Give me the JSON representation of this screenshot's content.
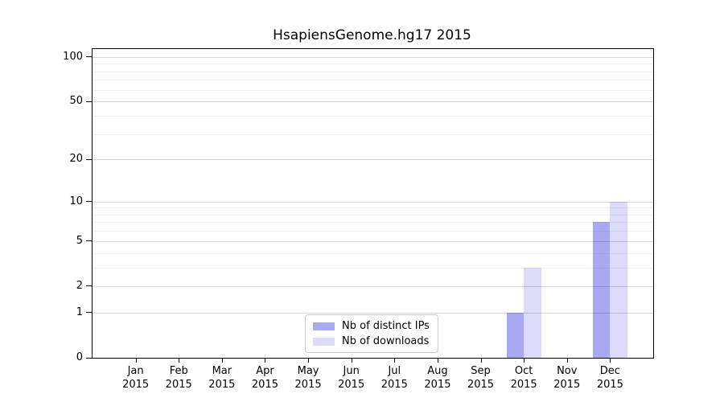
{
  "title": "HsapiensGenome.hg17 2015",
  "chart_data": {
    "type": "bar",
    "title": "HsapiensGenome.hg17 2015",
    "categories": [
      "Jan",
      "Feb",
      "Mar",
      "Apr",
      "May",
      "Jun",
      "Jul",
      "Aug",
      "Sep",
      "Oct",
      "Nov",
      "Dec"
    ],
    "category_year_label": "2015",
    "series": [
      {
        "name": "Nb of distinct IPs",
        "color": "#a8a8f3",
        "values": [
          0,
          0,
          0,
          0,
          0,
          0,
          0,
          0,
          0,
          1,
          0,
          7
        ]
      },
      {
        "name": "Nb of downloads",
        "color": "#dcdcfa",
        "values": [
          0,
          0,
          0,
          0,
          0,
          0,
          0,
          0,
          0,
          3,
          0,
          10
        ]
      }
    ],
    "xlabel": "",
    "ylabel": "",
    "yscale": "log1p",
    "ylim": [
      0,
      113
    ],
    "yticks": [
      0,
      1,
      2,
      5,
      10,
      20,
      50,
      100
    ],
    "minor_yticks": [
      3,
      4,
      6,
      7,
      8,
      9,
      30,
      40,
      60,
      70,
      80,
      90
    ],
    "bar_group_width": 0.8,
    "grid": true,
    "legend_position": "lower-center"
  },
  "legend": {
    "items": [
      {
        "label": "Nb of distinct IPs"
      },
      {
        "label": "Nb of downloads"
      }
    ]
  }
}
